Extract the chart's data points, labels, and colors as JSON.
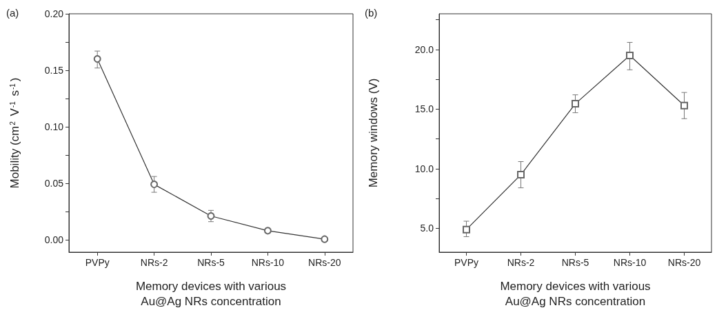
{
  "chart_data": [
    {
      "type": "line",
      "title": "(a)",
      "xlabel": "Memory devices with various\nAu@Ag NRs concentration",
      "ylabel": "Mobility (cm$^{2}$ V$^{-1}$ s$^{-1}$)",
      "categories": [
        "PVPy",
        "NRs-2",
        "NRs-5",
        "NRs-10",
        "NRs-20"
      ],
      "series": [
        {
          "color": "#333333",
          "values": [
            0.16,
            0.049,
            0.021,
            0.008,
            0.0005
          ],
          "errors": [
            [
              0.152,
              0.167
            ],
            [
              0.042,
              0.056
            ],
            [
              0.016,
              0.026
            ],
            null,
            null
          ]
        }
      ],
      "ylim": [
        -0.011,
        0.2
      ],
      "yticks": [
        {
          "value": 0,
          "label": "0.00"
        },
        {
          "value": 0.025,
          "label": null
        },
        {
          "value": 0.05,
          "label": "0.05"
        },
        {
          "value": 0.075,
          "label": null
        },
        {
          "value": 0.1,
          "label": "0.10"
        },
        {
          "value": 0.125,
          "label": null
        },
        {
          "value": 0.15,
          "label": "0.15"
        },
        {
          "value": 0.175,
          "label": null
        },
        {
          "value": 0.2,
          "label": "0.20"
        }
      ],
      "grid": false,
      "marker": "circle",
      "line_style": "solid"
    },
    {
      "type": "line",
      "title": "(b)",
      "xlabel": "Memory devices with various\nAu@Ag NRs concentration",
      "ylabel": "Memory windows (V)",
      "categories": [
        "PVPy",
        "NRs-2",
        "NRs-5",
        "NRs-10",
        "NRs-20"
      ],
      "series": [
        {
          "color": "#333333",
          "values": [
            4.9,
            9.5,
            15.45,
            19.5,
            15.3
          ],
          "errors": [
            [
              4.3,
              5.6
            ],
            [
              8.4,
              10.6
            ],
            [
              14.7,
              16.2
            ],
            [
              18.3,
              20.6
            ],
            [
              14.2,
              16.4
            ]
          ]
        }
      ],
      "ylim": [
        3,
        23
      ],
      "yticks": [
        {
          "value": 5,
          "label": "5.0"
        },
        {
          "value": 7.5,
          "label": null
        },
        {
          "value": 10,
          "label": "10.0"
        },
        {
          "value": 12.5,
          "label": null
        },
        {
          "value": 15,
          "label": "15.0"
        },
        {
          "value": 17.5,
          "label": null
        },
        {
          "value": 20,
          "label": "20.0"
        },
        {
          "value": 22.5,
          "label": null
        }
      ],
      "grid": false,
      "marker": "square",
      "line_style": "solid"
    }
  ]
}
